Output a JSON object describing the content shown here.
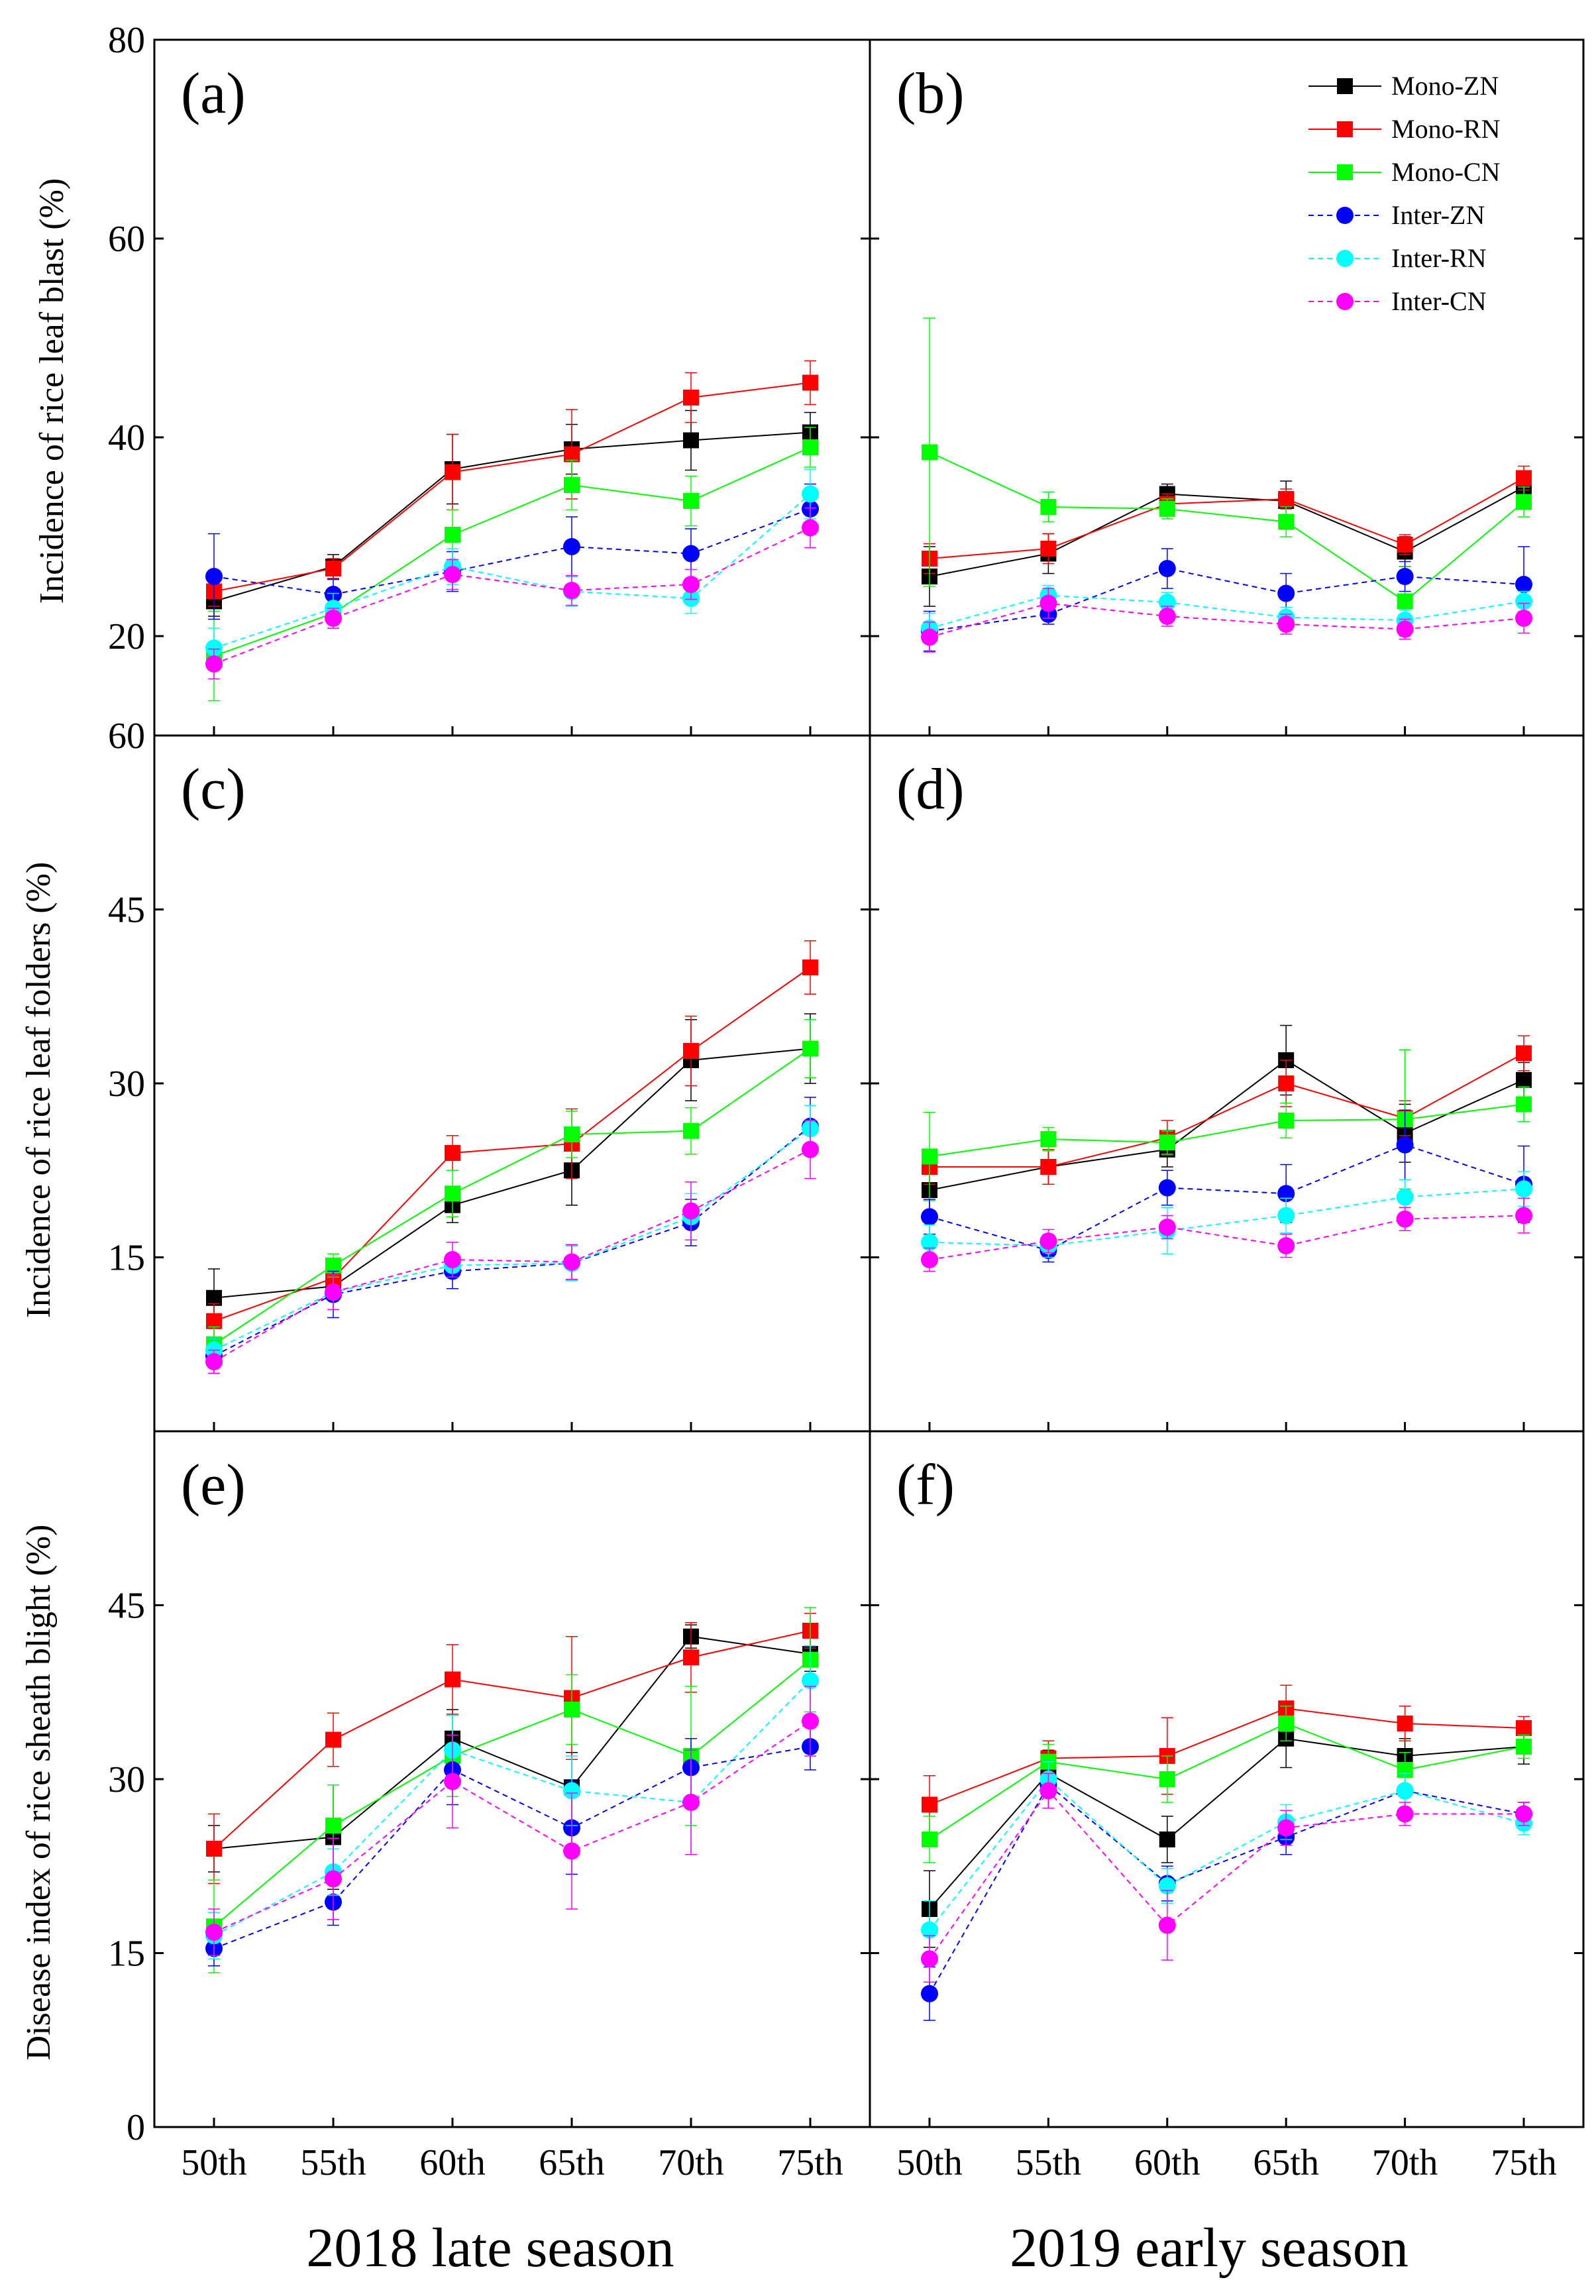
{
  "figure": {
    "x_categories": [
      "50th",
      "55th",
      "60th",
      "65th",
      "70th",
      "75th"
    ],
    "season_labels": [
      "2018 late season",
      "2019 early season"
    ],
    "row_ylabels": [
      "Incidence of rice leaf blast (%)",
      "Incidence of rice leaf folders (%)",
      "Disease index of rice sheath blight (%)"
    ],
    "legend": [
      {
        "name": "Mono-ZN",
        "color": "#000000",
        "marker": "square",
        "dash": "solid"
      },
      {
        "name": "Mono-RN",
        "color": "#ff0000",
        "marker": "square",
        "dash": "solid"
      },
      {
        "name": "Mono-CN",
        "color": "#00ff00",
        "marker": "square",
        "dash": "solid"
      },
      {
        "name": "Inter-ZN",
        "color": "#0000ff",
        "marker": "circle",
        "dash": "dashed"
      },
      {
        "name": "Inter-RN",
        "color": "#00ffff",
        "marker": "circle",
        "dash": "dashed"
      },
      {
        "name": "Inter-CN",
        "color": "#ff00ff",
        "marker": "circle",
        "dash": "dashed"
      }
    ]
  },
  "chart_data": [
    {
      "type": "line",
      "panel": "(a)",
      "row": 0,
      "col": 0,
      "ylabel": "Incidence of rice leaf blast (%)",
      "ylim": [
        10,
        80
      ],
      "yticks": [
        20,
        40,
        60,
        80
      ],
      "categories": [
        "50th",
        "55th",
        "60th",
        "65th",
        "70th",
        "75th"
      ],
      "series": [
        {
          "name": "Mono-ZN",
          "values": [
            23.5,
            27.0,
            36.8,
            38.8,
            39.7,
            40.5
          ],
          "err": [
            1.5,
            1.2,
            3.5,
            2.5,
            3.0,
            2.0
          ]
        },
        {
          "name": "Mono-RN",
          "values": [
            24.5,
            26.8,
            36.5,
            38.3,
            44.0,
            45.5
          ],
          "err": [
            1.5,
            1.0,
            3.8,
            4.5,
            2.5,
            2.2
          ]
        },
        {
          "name": "Mono-CN",
          "values": [
            18.0,
            22.3,
            30.2,
            35.2,
            33.6,
            39.0
          ],
          "err": [
            4.5,
            1.5,
            2.5,
            2.5,
            2.5,
            2.0
          ]
        },
        {
          "name": "Inter-ZN",
          "values": [
            26.0,
            24.2,
            26.5,
            29.0,
            28.3,
            32.8
          ],
          "err": [
            4.3,
            1.5,
            2.0,
            3.0,
            2.5,
            2.5
          ]
        },
        {
          "name": "Inter-RN",
          "values": [
            18.8,
            22.8,
            27.0,
            24.5,
            23.8,
            34.3
          ],
          "err": [
            2.0,
            1.5,
            1.8,
            1.5,
            1.5,
            2.5
          ]
        },
        {
          "name": "Inter-CN",
          "values": [
            17.2,
            21.8,
            26.2,
            24.6,
            25.2,
            30.9
          ],
          "err": [
            1.5,
            1.0,
            1.5,
            1.5,
            1.5,
            2.0
          ]
        }
      ]
    },
    {
      "type": "line",
      "panel": "(b)",
      "row": 0,
      "col": 1,
      "ylabel": "",
      "ylim": [
        10,
        80
      ],
      "yticks": [
        20,
        40,
        60,
        80
      ],
      "categories": [
        "50th",
        "55th",
        "60th",
        "65th",
        "70th",
        "75th"
      ],
      "series": [
        {
          "name": "Mono-ZN",
          "values": [
            26.0,
            28.3,
            34.3,
            33.6,
            28.5,
            35.0
          ],
          "err": [
            3.0,
            2.0,
            1.0,
            2.0,
            1.5,
            1.5
          ]
        },
        {
          "name": "Mono-RN",
          "values": [
            27.8,
            28.8,
            33.3,
            33.8,
            29.2,
            35.9
          ],
          "err": [
            1.5,
            1.5,
            1.0,
            1.0,
            1.0,
            1.2
          ]
        },
        {
          "name": "Mono-CN",
          "values": [
            38.5,
            33.0,
            32.8,
            31.5,
            23.5,
            33.5
          ],
          "err": [
            13.5,
            1.5,
            1.0,
            1.5,
            3.5,
            1.5
          ]
        },
        {
          "name": "Inter-ZN",
          "values": [
            20.5,
            22.2,
            26.8,
            24.3,
            26.0,
            25.2
          ],
          "err": [
            2.0,
            1.0,
            2.0,
            2.0,
            1.5,
            3.8
          ]
        },
        {
          "name": "Inter-RN",
          "values": [
            20.8,
            24.1,
            23.4,
            21.9,
            21.6,
            23.5
          ],
          "err": [
            1.5,
            1.0,
            1.0,
            1.0,
            1.0,
            1.0
          ]
        },
        {
          "name": "Inter-CN",
          "values": [
            19.9,
            23.3,
            22.0,
            21.2,
            20.7,
            21.8
          ],
          "err": [
            1.5,
            1.5,
            1.0,
            1.0,
            1.0,
            1.5
          ]
        }
      ]
    },
    {
      "type": "line",
      "panel": "(c)",
      "row": 1,
      "col": 0,
      "ylabel": "Incidence of rice leaf folders (%)",
      "ylim": [
        0,
        60
      ],
      "yticks": [
        15,
        30,
        45,
        60
      ],
      "categories": [
        "50th",
        "55th",
        "60th",
        "65th",
        "70th",
        "75th"
      ],
      "series": [
        {
          "name": "Mono-ZN",
          "values": [
            11.5,
            12.5,
            19.5,
            22.5,
            32.0,
            33.0
          ],
          "err": [
            2.5,
            2.0,
            1.5,
            3.0,
            3.5,
            3.0
          ]
        },
        {
          "name": "Mono-RN",
          "values": [
            9.5,
            13.2,
            24.0,
            24.8,
            32.8,
            40.0
          ],
          "err": [
            1.5,
            1.5,
            1.5,
            3.0,
            3.0,
            2.3
          ]
        },
        {
          "name": "Mono-CN",
          "values": [
            7.5,
            14.3,
            20.5,
            25.6,
            25.9,
            33.0
          ],
          "err": [
            1.5,
            1.0,
            2.0,
            2.0,
            2.0,
            2.5
          ]
        },
        {
          "name": "Inter-ZN",
          "values": [
            6.5,
            11.8,
            13.8,
            14.5,
            18.0,
            26.3
          ],
          "err": [
            1.5,
            2.0,
            1.5,
            1.5,
            2.0,
            2.5
          ]
        },
        {
          "name": "Inter-RN",
          "values": [
            7.0,
            12.0,
            14.3,
            14.5,
            18.5,
            26.1
          ],
          "err": [
            1.0,
            1.5,
            1.0,
            1.5,
            2.0,
            2.0
          ]
        },
        {
          "name": "Inter-CN",
          "values": [
            6.0,
            12.0,
            14.8,
            14.6,
            19.0,
            24.3
          ],
          "err": [
            1.0,
            1.5,
            1.5,
            1.5,
            2.5,
            2.5
          ]
        }
      ]
    },
    {
      "type": "line",
      "panel": "(d)",
      "row": 1,
      "col": 1,
      "ylabel": "",
      "ylim": [
        0,
        60
      ],
      "yticks": [
        15,
        30,
        45,
        60
      ],
      "categories": [
        "50th",
        "55th",
        "60th",
        "65th",
        "70th",
        "75th"
      ],
      "series": [
        {
          "name": "Mono-ZN",
          "values": [
            20.8,
            22.8,
            24.3,
            32.0,
            25.7,
            30.3
          ],
          "err": [
            2.0,
            1.5,
            1.5,
            3.0,
            2.5,
            1.5
          ]
        },
        {
          "name": "Mono-RN",
          "values": [
            22.8,
            22.8,
            25.3,
            30.0,
            27.0,
            32.6
          ],
          "err": [
            1.5,
            1.5,
            1.5,
            2.0,
            1.5,
            1.5
          ]
        },
        {
          "name": "Mono-CN",
          "values": [
            23.7,
            25.2,
            24.9,
            26.8,
            26.9,
            28.2
          ],
          "err": [
            3.8,
            1.0,
            1.0,
            1.5,
            6.0,
            1.5
          ]
        },
        {
          "name": "Inter-ZN",
          "values": [
            18.5,
            15.6,
            21.0,
            20.5,
            24.7,
            21.3
          ],
          "err": [
            1.5,
            1.0,
            1.5,
            2.5,
            3.0,
            3.3
          ]
        },
        {
          "name": "Inter-RN",
          "values": [
            16.3,
            16.0,
            17.3,
            18.6,
            20.2,
            20.9
          ],
          "err": [
            1.5,
            1.0,
            2.0,
            1.5,
            1.5,
            1.5
          ]
        },
        {
          "name": "Inter-CN",
          "values": [
            14.8,
            16.4,
            17.6,
            16.0,
            18.3,
            18.6
          ],
          "err": [
            1.0,
            1.0,
            1.0,
            1.0,
            1.0,
            1.5
          ]
        }
      ]
    },
    {
      "type": "line",
      "panel": "(e)",
      "row": 2,
      "col": 0,
      "ylabel": "Disease index of rice sheath blight (%)",
      "ylim": [
        0,
        60
      ],
      "yticks": [
        0,
        15,
        30,
        45
      ],
      "categories": [
        "50th",
        "55th",
        "60th",
        "65th",
        "70th",
        "75th"
      ],
      "series": [
        {
          "name": "Mono-ZN",
          "values": [
            24.0,
            25.0,
            33.5,
            29.3,
            42.3,
            40.8
          ],
          "err": [
            2.0,
            4.5,
            2.5,
            3.0,
            1.0,
            1.5
          ]
        },
        {
          "name": "Mono-RN",
          "values": [
            24.0,
            33.4,
            38.6,
            37.0,
            40.5,
            42.8
          ],
          "err": [
            3.0,
            2.3,
            3.0,
            5.3,
            3.0,
            1.5
          ]
        },
        {
          "name": "Mono-CN",
          "values": [
            17.3,
            26.0,
            32.0,
            36.0,
            32.0,
            40.3
          ],
          "err": [
            4.0,
            3.5,
            3.5,
            3.0,
            6.0,
            4.5
          ]
        },
        {
          "name": "Inter-ZN",
          "values": [
            15.4,
            19.4,
            30.8,
            25.8,
            31.0,
            32.8
          ],
          "err": [
            1.5,
            2.0,
            3.0,
            4.0,
            2.5,
            2.0
          ]
        },
        {
          "name": "Inter-RN",
          "values": [
            16.5,
            22.0,
            32.5,
            29.0,
            28.0,
            38.5
          ],
          "err": [
            2.0,
            2.0,
            3.0,
            3.0,
            4.5,
            3.0
          ]
        },
        {
          "name": "Inter-CN",
          "values": [
            16.8,
            21.4,
            29.8,
            23.8,
            28.0,
            35.0
          ],
          "err": [
            2.0,
            3.5,
            4.0,
            5.0,
            4.5,
            3.0
          ]
        }
      ]
    },
    {
      "type": "line",
      "panel": "(f)",
      "row": 2,
      "col": 1,
      "ylabel": "",
      "ylim": [
        0,
        60
      ],
      "yticks": [
        0,
        15,
        30,
        45
      ],
      "categories": [
        "50th",
        "55th",
        "60th",
        "65th",
        "70th",
        "75th"
      ],
      "series": [
        {
          "name": "Mono-ZN",
          "values": [
            18.8,
            30.5,
            24.8,
            33.5,
            32.0,
            32.8
          ],
          "err": [
            3.3,
            2.0,
            2.0,
            2.5,
            1.5,
            1.5
          ]
        },
        {
          "name": "Mono-RN",
          "values": [
            27.8,
            31.8,
            32.0,
            36.1,
            34.8,
            34.4
          ],
          "err": [
            2.5,
            1.5,
            3.3,
            2.0,
            1.5,
            1.0
          ]
        },
        {
          "name": "Mono-CN",
          "values": [
            24.8,
            31.5,
            30.0,
            34.8,
            30.8,
            32.8
          ],
          "err": [
            2.0,
            1.5,
            2.0,
            1.5,
            1.5,
            1.0
          ]
        },
        {
          "name": "Inter-ZN",
          "values": [
            11.5,
            29.5,
            21.0,
            25.0,
            29.0,
            27.0
          ],
          "err": [
            2.3,
            2.0,
            1.5,
            1.5,
            1.5,
            1.0
          ]
        },
        {
          "name": "Inter-RN",
          "values": [
            17.0,
            30.0,
            20.8,
            26.3,
            29.0,
            26.2
          ],
          "err": [
            2.5,
            1.5,
            1.5,
            1.5,
            1.5,
            1.0
          ]
        },
        {
          "name": "Inter-CN",
          "values": [
            14.5,
            29.0,
            17.4,
            25.8,
            27.0,
            27.0
          ],
          "err": [
            2.0,
            1.5,
            3.0,
            1.5,
            1.0,
            1.0
          ]
        }
      ]
    }
  ]
}
